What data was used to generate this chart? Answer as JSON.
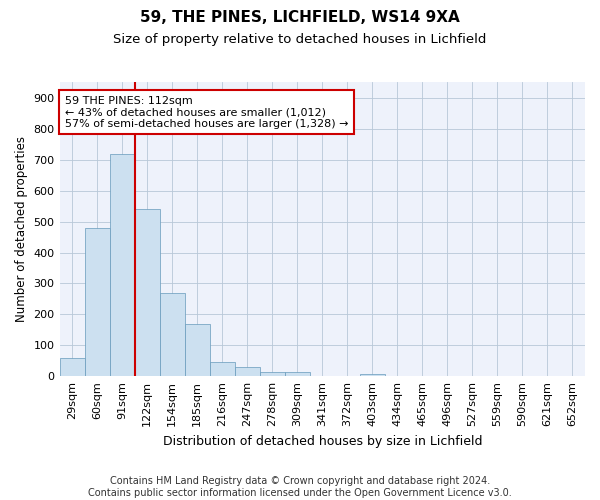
{
  "title1": "59, THE PINES, LICHFIELD, WS14 9XA",
  "title2": "Size of property relative to detached houses in Lichfield",
  "xlabel": "Distribution of detached houses by size in Lichfield",
  "ylabel": "Number of detached properties",
  "categories": [
    "29sqm",
    "60sqm",
    "91sqm",
    "122sqm",
    "154sqm",
    "185sqm",
    "216sqm",
    "247sqm",
    "278sqm",
    "309sqm",
    "341sqm",
    "372sqm",
    "403sqm",
    "434sqm",
    "465sqm",
    "496sqm",
    "527sqm",
    "559sqm",
    "590sqm",
    "621sqm",
    "652sqm"
  ],
  "values": [
    60,
    480,
    720,
    540,
    270,
    170,
    45,
    30,
    15,
    13,
    0,
    0,
    8,
    0,
    0,
    0,
    0,
    0,
    0,
    0,
    0
  ],
  "bar_color": "#cce0f0",
  "bar_edge_color": "#6699bb",
  "vline_color": "#cc0000",
  "vline_x": 2.5,
  "annotation_lines": [
    "59 THE PINES: 112sqm",
    "← 43% of detached houses are smaller (1,012)",
    "57% of semi-detached houses are larger (1,328) →"
  ],
  "annotation_box_color": "#ffffff",
  "annotation_box_edge_color": "#cc0000",
  "ylim": [
    0,
    950
  ],
  "yticks": [
    0,
    100,
    200,
    300,
    400,
    500,
    600,
    700,
    800,
    900
  ],
  "bg_color": "#eef2fb",
  "footer": "Contains HM Land Registry data © Crown copyright and database right 2024.\nContains public sector information licensed under the Open Government Licence v3.0.",
  "title1_fontsize": 11,
  "title2_fontsize": 9.5,
  "xlabel_fontsize": 9,
  "ylabel_fontsize": 8.5,
  "tick_fontsize": 8,
  "footer_fontsize": 7,
  "annotation_fontsize": 8
}
